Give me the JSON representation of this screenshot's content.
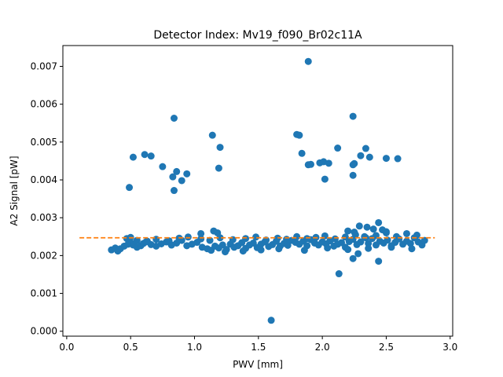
{
  "chart_data": {
    "type": "scatter",
    "title": "Detector Index: Mv19_f090_Br02c11A",
    "xlabel": "PWV [mm]",
    "ylabel": "A2 Signal [pW]",
    "xlim": [
      -0.03,
      3.02
    ],
    "ylim": [
      -0.00013,
      0.00755
    ],
    "xticks": [
      0.0,
      0.5,
      1.0,
      1.5,
      2.0,
      2.5,
      3.0
    ],
    "xtick_labels": [
      "0.0",
      "0.5",
      "1.0",
      "1.5",
      "2.0",
      "2.5",
      "3.0"
    ],
    "yticks": [
      0.0,
      0.001,
      0.002,
      0.003,
      0.004,
      0.005,
      0.006,
      0.007
    ],
    "ytick_labels": [
      "0.000",
      "0.001",
      "0.002",
      "0.003",
      "0.004",
      "0.005",
      "0.006",
      "0.007"
    ],
    "grid": false,
    "colors": {
      "points": "#1f77b4",
      "fit_line": "#ff7f0e"
    },
    "series": [
      {
        "name": "A2 Signal",
        "x": [
          0.35,
          0.38,
          0.4,
          0.42,
          0.45,
          0.48,
          0.5,
          0.52,
          0.55,
          0.58,
          0.6,
          0.63,
          0.66,
          0.7,
          0.74,
          0.78,
          0.82,
          0.86,
          0.9,
          0.94,
          0.98,
          1.02,
          1.06,
          1.1,
          1.13,
          1.16,
          1.19,
          1.22,
          1.25,
          1.28,
          1.31,
          1.34,
          1.37,
          1.4,
          1.43,
          1.46,
          1.49,
          1.52,
          1.55,
          1.58,
          1.61,
          1.64,
          1.67,
          1.7,
          1.73,
          1.76,
          1.79,
          1.82,
          1.85,
          1.88,
          1.91,
          1.94,
          1.97,
          2.0,
          2.03,
          2.06,
          2.09,
          2.12,
          2.15,
          2.18,
          2.21,
          2.24,
          2.27,
          2.3,
          2.33,
          2.36,
          2.39,
          2.42,
          2.45,
          2.48,
          2.51,
          2.54,
          2.57,
          2.6,
          2.63,
          2.66,
          2.69,
          2.72,
          2.75,
          2.78,
          2.8,
          0.47,
          0.5,
          0.55,
          0.62,
          0.7,
          0.8,
          0.88,
          0.95,
          1.05,
          1.12,
          1.2,
          1.3,
          1.4,
          1.48,
          1.56,
          1.65,
          1.72,
          1.8,
          1.88,
          1.95,
          2.02,
          2.1,
          2.18,
          2.26,
          2.34,
          2.42,
          2.5,
          2.58,
          2.66,
          2.74,
          1.24,
          1.38,
          1.52,
          1.66,
          1.86,
          2.04,
          2.2,
          2.36,
          2.54,
          2.7,
          0.49,
          0.52,
          0.61,
          0.66,
          0.75,
          0.83,
          0.84,
          0.86,
          0.9,
          0.94,
          1.14,
          1.19,
          1.2,
          1.8,
          1.82,
          1.84,
          1.89,
          1.91,
          1.98,
          2.01,
          2.02,
          2.05,
          2.12,
          2.24,
          2.24,
          2.25,
          2.3,
          2.34,
          2.37,
          2.5,
          2.59,
          1.89,
          2.24,
          0.84,
          0.82,
          2.13,
          1.6,
          2.24,
          2.28,
          2.44,
          2.29,
          2.25,
          2.2,
          2.4,
          2.44,
          2.47,
          2.35,
          2.5,
          1.15,
          1.18,
          1.05
        ],
        "values": [
          0.00215,
          0.0022,
          0.00212,
          0.00218,
          0.00225,
          0.0023,
          0.00235,
          0.00228,
          0.00222,
          0.00226,
          0.00232,
          0.00238,
          0.00229,
          0.00225,
          0.00231,
          0.00236,
          0.00228,
          0.00233,
          0.0024,
          0.00226,
          0.0023,
          0.00235,
          0.00222,
          0.00218,
          0.00214,
          0.00225,
          0.0022,
          0.00228,
          0.00216,
          0.0023,
          0.00222,
          0.00226,
          0.00234,
          0.00219,
          0.00228,
          0.00233,
          0.00221,
          0.0023,
          0.00236,
          0.00224,
          0.00229,
          0.00238,
          0.00225,
          0.00232,
          0.00227,
          0.0024,
          0.00235,
          0.0023,
          0.00238,
          0.00226,
          0.00242,
          0.00233,
          0.00228,
          0.00236,
          0.00231,
          0.00239,
          0.00225,
          0.0023,
          0.00234,
          0.00222,
          0.00237,
          0.00243,
          0.00229,
          0.00236,
          0.0025,
          0.00232,
          0.00245,
          0.00228,
          0.00238,
          0.00233,
          0.00241,
          0.00226,
          0.00235,
          0.00244,
          0.0023,
          0.00238,
          0.00232,
          0.00247,
          0.00236,
          0.00228,
          0.0024,
          0.00245,
          0.00248,
          0.0024,
          0.00236,
          0.00243,
          0.00239,
          0.00246,
          0.00249,
          0.00244,
          0.0024,
          0.00247,
          0.00242,
          0.00245,
          0.00249,
          0.00241,
          0.00246,
          0.00243,
          0.0025,
          0.00245,
          0.00248,
          0.00252,
          0.00244,
          0.00249,
          0.00255,
          0.00247,
          0.00253,
          0.0026,
          0.0025,
          0.00258,
          0.00254,
          0.0021,
          0.00212,
          0.00215,
          0.00218,
          0.00214,
          0.0022,
          0.00216,
          0.00219,
          0.00222,
          0.00218,
          0.0038,
          0.0046,
          0.00467,
          0.00463,
          0.00435,
          0.00408,
          0.00563,
          0.00422,
          0.00398,
          0.00416,
          0.00518,
          0.00431,
          0.00486,
          0.0052,
          0.00518,
          0.0047,
          0.0044,
          0.00441,
          0.00445,
          0.00448,
          0.00402,
          0.00444,
          0.00484,
          0.00412,
          0.00568,
          0.00443,
          0.00464,
          0.00483,
          0.0046,
          0.00457,
          0.00456,
          0.00713,
          0.0044,
          0.00372,
          0.00228,
          0.00152,
          0.00029,
          0.00192,
          0.00205,
          0.00185,
          0.00278,
          0.00262,
          0.00265,
          0.0027,
          0.00287,
          0.00268,
          0.00275,
          0.00263,
          0.00265,
          0.0026,
          0.00258
        ]
      }
    ],
    "fit_line": {
      "style": "dashed",
      "x": [
        0.1,
        2.88
      ],
      "y": [
        0.00247,
        0.00247
      ]
    }
  }
}
